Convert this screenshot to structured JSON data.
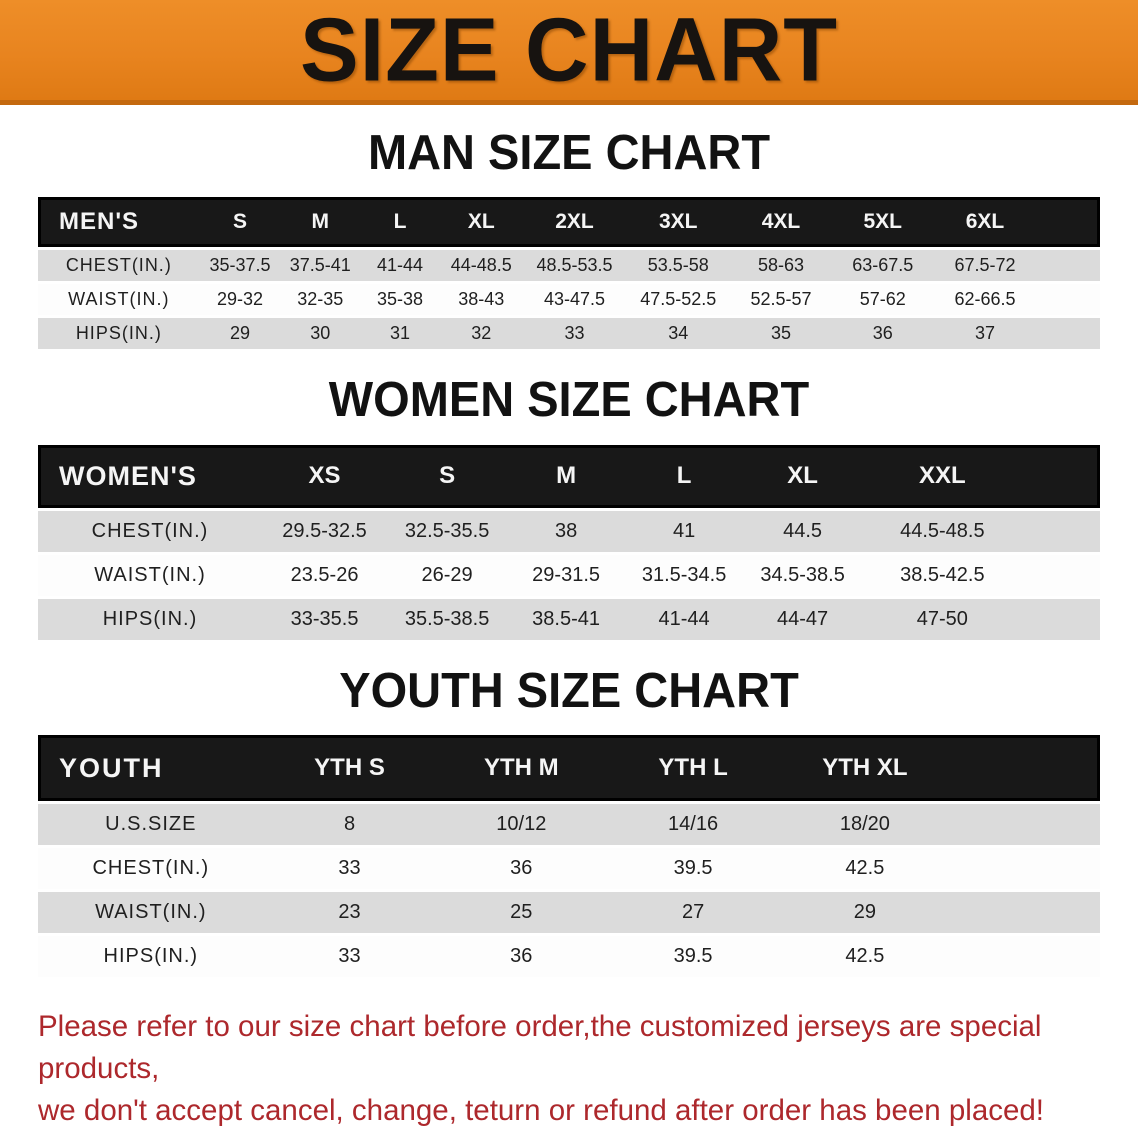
{
  "banner": {
    "title": "SIZE CHART",
    "background_color": "#E8841F",
    "text_color": "#171310"
  },
  "sections": [
    {
      "id": "men",
      "heading": "MAN SIZE CHART",
      "corner_label": "MEN'S",
      "columns": [
        "S",
        "M",
        "L",
        "XL",
        "2XL",
        "3XL",
        "4XL",
        "5XL",
        "6XL"
      ],
      "rows": [
        {
          "label": "CHEST(IN.)",
          "values": [
            "35-37.5",
            "37.5-41",
            "41-44",
            "44-48.5",
            "48.5-53.5",
            "53.5-58",
            "58-63",
            "63-67.5",
            "67.5-72"
          ]
        },
        {
          "label": "WAIST(IN.)",
          "values": [
            "29-32",
            "32-35",
            "35-38",
            "38-43",
            "43-47.5",
            "47.5-52.5",
            "52.5-57",
            "57-62",
            "62-66.5"
          ]
        },
        {
          "label": "HIPS(IN.)",
          "values": [
            "29",
            "30",
            "31",
            "32",
            "33",
            "34",
            "35",
            "36",
            "37"
          ]
        }
      ]
    },
    {
      "id": "women",
      "heading": "WOMEN SIZE CHART",
      "corner_label": "WOMEN'S",
      "columns": [
        "XS",
        "S",
        "M",
        "L",
        "XL",
        "XXL"
      ],
      "rows": [
        {
          "label": "CHEST(IN.)",
          "values": [
            "29.5-32.5",
            "32.5-35.5",
            "38",
            "41",
            "44.5",
            "44.5-48.5"
          ]
        },
        {
          "label": "WAIST(IN.)",
          "values": [
            "23.5-26",
            "26-29",
            "29-31.5",
            "31.5-34.5",
            "34.5-38.5",
            "38.5-42.5"
          ]
        },
        {
          "label": "HIPS(IN.)",
          "values": [
            "33-35.5",
            "35.5-38.5",
            "38.5-41",
            "41-44",
            "44-47",
            "47-50"
          ]
        }
      ]
    },
    {
      "id": "youth",
      "heading": "YOUTH SIZE CHART",
      "corner_label": "YOUTH",
      "columns": [
        "YTH S",
        "YTH M",
        "YTH L",
        "YTH XL"
      ],
      "rows": [
        {
          "label": "U.S.SIZE",
          "values": [
            "8",
            "10/12",
            "14/16",
            "18/20"
          ]
        },
        {
          "label": "CHEST(IN.)",
          "values": [
            "33",
            "36",
            "39.5",
            "42.5"
          ]
        },
        {
          "label": "WAIST(IN.)",
          "values": [
            "23",
            "25",
            "27",
            "29"
          ]
        },
        {
          "label": "HIPS(IN.)",
          "values": [
            "33",
            "36",
            "39.5",
            "42.5"
          ]
        }
      ]
    }
  ],
  "footer": {
    "line1": "Please refer to our size chart before order,the customized jerseys are special products,",
    "line2": "we don't accept cancel, change, teturn or refund after order has been placed!",
    "text_color": "#AD282C"
  },
  "style_colors": {
    "header_row_bg": "#181818",
    "gray_row_bg": "#DBDBDB",
    "white_row_bg": "#FDFDFD"
  }
}
